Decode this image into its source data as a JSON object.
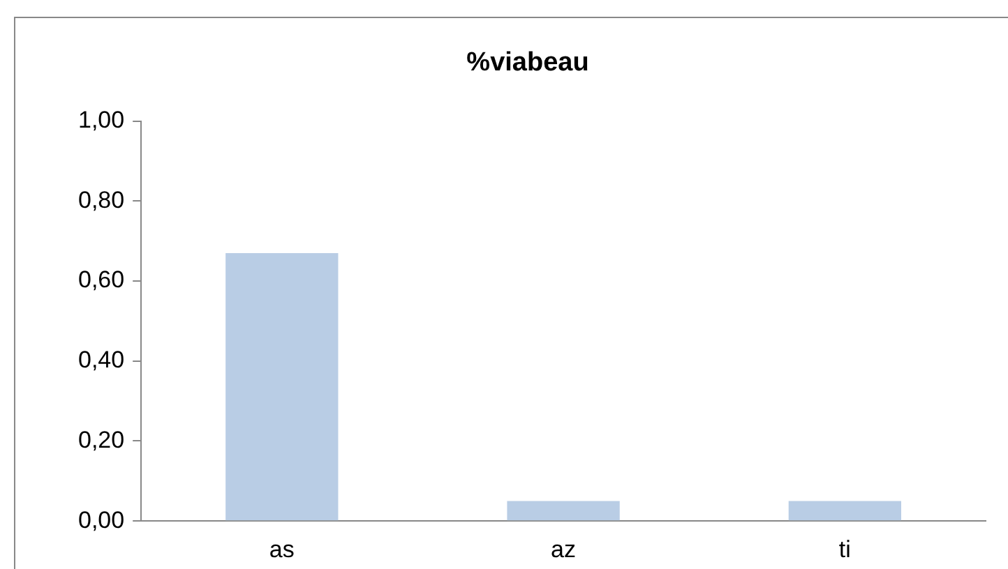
{
  "chart_data": {
    "type": "bar",
    "title": "%viabeau",
    "categories": [
      "as",
      "az",
      "ti"
    ],
    "values": [
      0.67,
      0.05,
      0.05
    ],
    "color": "#b9cde5",
    "ylim": [
      0,
      1
    ],
    "yticks": [
      {
        "value": 0,
        "label": "0,00"
      },
      {
        "value": 0.2,
        "label": "0,20"
      },
      {
        "value": 0.4,
        "label": "0,40"
      },
      {
        "value": 0.6,
        "label": "0,60"
      },
      {
        "value": 0.8,
        "label": "0,80"
      },
      {
        "value": 1,
        "label": "1,00"
      }
    ],
    "grid": false,
    "legend": false
  }
}
